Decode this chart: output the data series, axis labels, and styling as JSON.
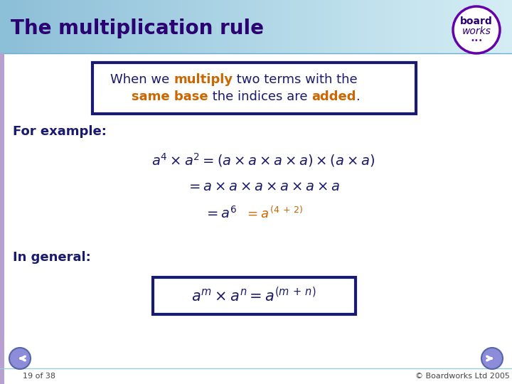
{
  "title": "The multiplication rule",
  "title_color": "#3D0099",
  "header_bg_left": "#A8D4E6",
  "header_bg_right": "#D8F0F5",
  "content_bg": "#FFFFFF",
  "slide_bg": "#E8F4F8",
  "box_edge_color": "#1a1a6e",
  "for_example_label": "For example:",
  "in_general_label": "In general:",
  "footer_left": "19 of 38",
  "footer_right": "© Boardworks Ltd 2005",
  "navy": "#1a1a6e",
  "orange": "#CC6600",
  "dark_navy": "#2B0070",
  "logo_purple": "#6600AA"
}
